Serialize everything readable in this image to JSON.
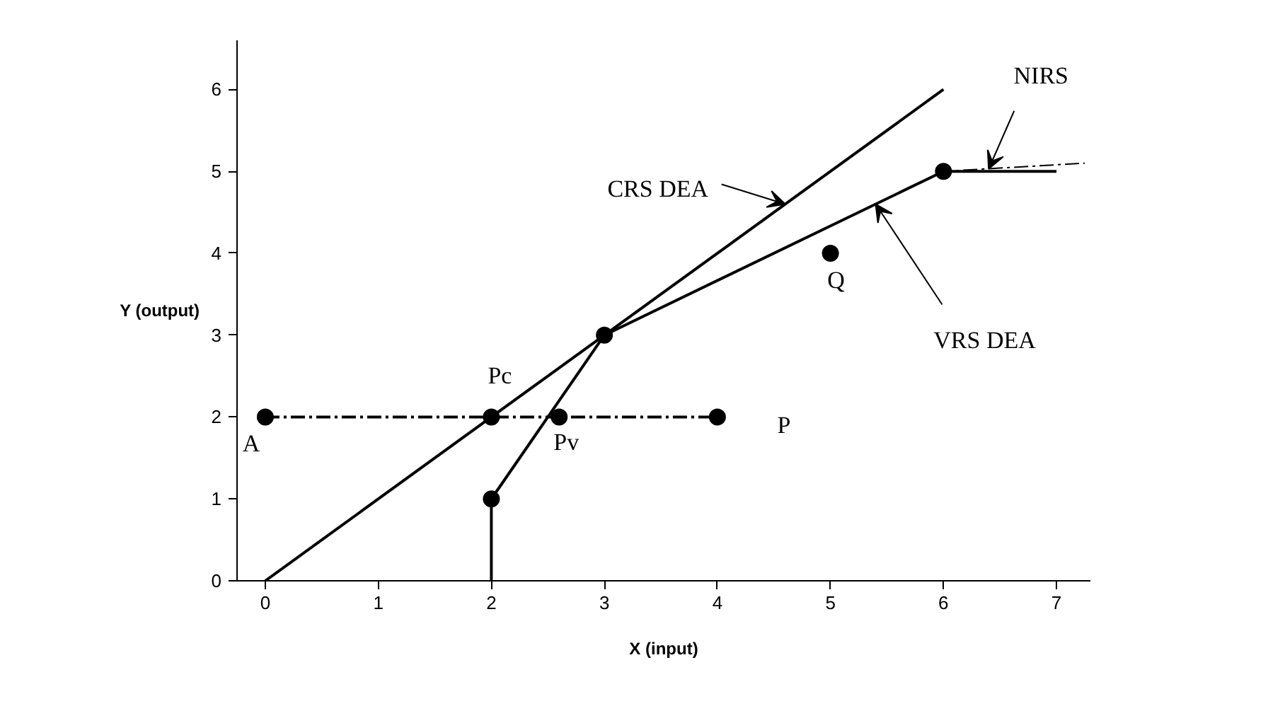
{
  "chart_data": {
    "type": "line",
    "xlabel": "X (input)",
    "ylabel": "Y (output)",
    "xlim": [
      -0.25,
      7.3
    ],
    "ylim": [
      0,
      6.6
    ],
    "xticks": [
      0,
      1,
      2,
      3,
      4,
      5,
      6,
      7
    ],
    "yticks": [
      0,
      1,
      2,
      3,
      4,
      5,
      6
    ],
    "grid": false,
    "series": [
      {
        "color": "#000000",
        "x": [
          0,
          6
        ],
        "values": [
          0,
          6
        ],
        "line_style": "solid",
        "marker": "none"
      },
      {
        "color": "#000000",
        "x": [
          2,
          2,
          3,
          6,
          7
        ],
        "values": [
          0,
          1,
          3,
          5,
          5
        ],
        "line_style": "solid",
        "marker": "none"
      },
      {
        "color": "#000000",
        "x": [
          0,
          3,
          6,
          7.25
        ],
        "values": [
          0,
          3,
          5,
          5.1
        ],
        "line_style": "dashed",
        "marker": "none"
      },
      {
        "color": "#000000",
        "x": [
          0,
          4
        ],
        "values": [
          2,
          2
        ],
        "line_style": "dashed",
        "marker": "none"
      },
      {
        "type": "scatter",
        "color": "#000000",
        "x": [
          0,
          2,
          2.6,
          4,
          5,
          2,
          3,
          6
        ],
        "values": [
          2,
          2,
          2,
          2,
          4,
          1,
          3,
          5
        ],
        "marker": "circle"
      }
    ],
    "annotations": [
      {
        "text": "CRS DEA",
        "x": 4.6,
        "y": 4.6
      },
      {
        "text": "NIRS",
        "x": 6.4,
        "y": 5.03
      },
      {
        "text": "VRS DEA",
        "x": 5.4,
        "y": 4.6
      },
      {
        "text": "Pc",
        "x": 2,
        "y": 2
      },
      {
        "text": "A",
        "x": 0,
        "y": 2
      },
      {
        "text": "Pv",
        "x": 2.6,
        "y": 2
      },
      {
        "text": "P",
        "x": 4,
        "y": 2
      },
      {
        "text": "Q",
        "x": 5,
        "y": 4
      }
    ]
  }
}
